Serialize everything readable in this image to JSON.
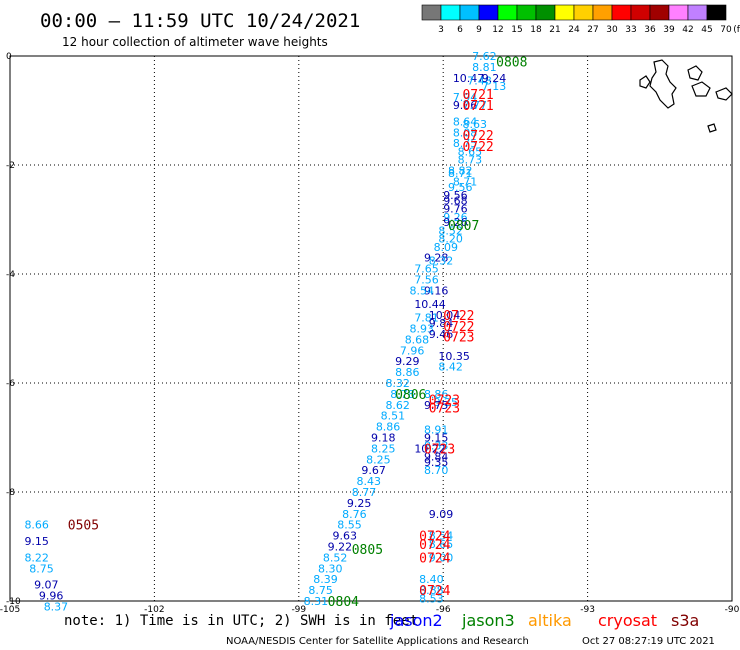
{
  "header": {
    "title": "00:00 — 11:59 UTC 10/24/2021",
    "subtitle": "12 hour collection of altimeter wave heights"
  },
  "colorbar": {
    "labels": [
      "3",
      "6",
      "9",
      "12",
      "15",
      "18",
      "21",
      "24",
      "27",
      "30",
      "33",
      "36",
      "39",
      "42",
      "45",
      "70",
      "(ft)"
    ],
    "colors": [
      "#777777",
      "#00ffff",
      "#00c0ff",
      "#0000ff",
      "#00ff00",
      "#00c000",
      "#009000",
      "#ffff00",
      "#ffd000",
      "#ffa000",
      "#ff0000",
      "#d00000",
      "#a00000",
      "#ff80ff",
      "#c080ff",
      "#000000"
    ]
  },
  "footer": {
    "note": "note: 1) Time is in UTC; 2) SWH is in feet",
    "credit": "NOAA/NESDIS Center for Satellite Applications and Research",
    "timestamp": "Oct 27 08:27:19 UTC 2021"
  },
  "legend": [
    {
      "name": "jason2",
      "color": "#0000ff"
    },
    {
      "name": "jason3",
      "color": "#008000"
    },
    {
      "name": "altika",
      "color": "#ff9900"
    },
    {
      "name": "cryosat",
      "color": "#ff0000"
    },
    {
      "name": "s3a",
      "color": "#800000"
    }
  ],
  "chart_data": {
    "type": "scatter",
    "title": "00:00 — 11:59 UTC 10/24/2021",
    "xlim": [
      -105,
      -90
    ],
    "ylim": [
      -10,
      0
    ],
    "x_ticks": [
      "-105",
      "-102",
      "-99",
      "-96",
      "-93",
      "-90"
    ],
    "y_ticks": [
      "0",
      "-2",
      "-4",
      "-6",
      "-8",
      "-10"
    ],
    "grid": true,
    "colors": {
      "light": "#00aaff",
      "dark": "#0000aa",
      "green": "#008000",
      "red": "#ff0000",
      "maroon": "#800000"
    },
    "points": [
      {
        "x": -95.4,
        "y": 0.0,
        "label": "7.62",
        "color": "light"
      },
      {
        "x": -95.4,
        "y": -0.2,
        "label": "8.81",
        "color": "light"
      },
      {
        "x": -95.8,
        "y": -0.4,
        "label": "10.47",
        "color": "dark"
      },
      {
        "x": -95.5,
        "y": -0.45,
        "label": "7.48",
        "color": "light"
      },
      {
        "x": -95.2,
        "y": -0.4,
        "label": "9.24",
        "color": "dark"
      },
      {
        "x": -95.2,
        "y": -0.55,
        "label": "7.13",
        "color": "light"
      },
      {
        "x": -95.8,
        "y": -0.75,
        "label": "7.94",
        "color": "light"
      },
      {
        "x": -95.8,
        "y": -0.9,
        "label": "9.06",
        "color": "dark"
      },
      {
        "x": -95.6,
        "y": -0.9,
        "label": "7.77",
        "color": "light"
      },
      {
        "x": -95.8,
        "y": -1.2,
        "label": "8.64",
        "color": "light"
      },
      {
        "x": -95.6,
        "y": -1.25,
        "label": "8.63",
        "color": "light"
      },
      {
        "x": -95.8,
        "y": -1.4,
        "label": "8.08",
        "color": "light"
      },
      {
        "x": -95.8,
        "y": -1.6,
        "label": "8.75",
        "color": "light"
      },
      {
        "x": -95.7,
        "y": -1.75,
        "label": "8.65",
        "color": "light"
      },
      {
        "x": -95.7,
        "y": -1.9,
        "label": "8.73",
        "color": "light"
      },
      {
        "x": -95.9,
        "y": -2.1,
        "label": "8.82",
        "color": "light"
      },
      {
        "x": -95.9,
        "y": -2.15,
        "label": "8.71",
        "color": "light"
      },
      {
        "x": -95.8,
        "y": -2.3,
        "label": "8.71",
        "color": "light"
      },
      {
        "x": -95.9,
        "y": -2.4,
        "label": "9.56",
        "color": "light"
      },
      {
        "x": -96.0,
        "y": -2.55,
        "label": "9.56",
        "color": "dark"
      },
      {
        "x": -96.0,
        "y": -2.65,
        "label": "9.68",
        "color": "dark"
      },
      {
        "x": -96.0,
        "y": -2.8,
        "label": "9.76",
        "color": "dark"
      },
      {
        "x": -96.0,
        "y": -2.95,
        "label": "9.26",
        "color": "light"
      },
      {
        "x": -96.0,
        "y": -3.05,
        "label": "9.26",
        "color": "dark"
      },
      {
        "x": -96.1,
        "y": -3.2,
        "label": "8.52",
        "color": "light"
      },
      {
        "x": -96.1,
        "y": -3.35,
        "label": "8.20",
        "color": "light"
      },
      {
        "x": -96.2,
        "y": -3.5,
        "label": "8.09",
        "color": "light"
      },
      {
        "x": -96.4,
        "y": -3.7,
        "label": "9.28",
        "color": "dark"
      },
      {
        "x": -96.3,
        "y": -3.75,
        "label": "8.32",
        "color": "light"
      },
      {
        "x": -96.6,
        "y": -3.9,
        "label": "7.65",
        "color": "light"
      },
      {
        "x": -96.6,
        "y": -4.1,
        "label": "7.56",
        "color": "light"
      },
      {
        "x": -96.4,
        "y": -4.3,
        "label": "9.16",
        "color": "dark"
      },
      {
        "x": -96.7,
        "y": -4.3,
        "label": "8.54",
        "color": "light"
      },
      {
        "x": -96.6,
        "y": -4.55,
        "label": "10.44",
        "color": "dark"
      },
      {
        "x": -96.3,
        "y": -4.75,
        "label": "10.04",
        "color": "dark"
      },
      {
        "x": -96.6,
        "y": -4.8,
        "label": "7.81",
        "color": "light"
      },
      {
        "x": -96.3,
        "y": -4.9,
        "label": "9.84",
        "color": "dark"
      },
      {
        "x": -96.7,
        "y": -5.0,
        "label": "8.93",
        "color": "light"
      },
      {
        "x": -96.3,
        "y": -5.1,
        "label": "9.46",
        "color": "dark"
      },
      {
        "x": -96.8,
        "y": -5.2,
        "label": "8.68",
        "color": "light"
      },
      {
        "x": -96.9,
        "y": -5.4,
        "label": "7.96",
        "color": "light"
      },
      {
        "x": -96.1,
        "y": -5.5,
        "label": "10.35",
        "color": "dark"
      },
      {
        "x": -97.0,
        "y": -5.6,
        "label": "9.29",
        "color": "dark"
      },
      {
        "x": -96.1,
        "y": -5.7,
        "label": "8.42",
        "color": "light"
      },
      {
        "x": -97.0,
        "y": -5.8,
        "label": "8.86",
        "color": "light"
      },
      {
        "x": -97.2,
        "y": -6.0,
        "label": "8.32",
        "color": "light"
      },
      {
        "x": -97.1,
        "y": -6.2,
        "label": "8.78",
        "color": "light"
      },
      {
        "x": -96.4,
        "y": -6.2,
        "label": "8.86",
        "color": "light"
      },
      {
        "x": -96.2,
        "y": -6.35,
        "label": "9.25",
        "color": "light"
      },
      {
        "x": -97.2,
        "y": -6.4,
        "label": "8.62",
        "color": "light"
      },
      {
        "x": -96.4,
        "y": -6.4,
        "label": "9.75",
        "color": "dark"
      },
      {
        "x": -97.3,
        "y": -6.6,
        "label": "8.51",
        "color": "light"
      },
      {
        "x": -97.4,
        "y": -6.8,
        "label": "8.86",
        "color": "light"
      },
      {
        "x": -96.4,
        "y": -6.85,
        "label": "8.91",
        "color": "light"
      },
      {
        "x": -96.4,
        "y": -7.0,
        "label": "9.15",
        "color": "dark"
      },
      {
        "x": -97.5,
        "y": -7.0,
        "label": "9.18",
        "color": "dark"
      },
      {
        "x": -96.4,
        "y": -7.15,
        "label": "8.33",
        "color": "light"
      },
      {
        "x": -97.5,
        "y": -7.2,
        "label": "8.25",
        "color": "light"
      },
      {
        "x": -96.6,
        "y": -7.2,
        "label": "10.22",
        "color": "dark"
      },
      {
        "x": -96.4,
        "y": -7.35,
        "label": "9.84",
        "color": "dark"
      },
      {
        "x": -97.6,
        "y": -7.4,
        "label": "8.25",
        "color": "light"
      },
      {
        "x": -96.4,
        "y": -7.45,
        "label": "9.35",
        "color": "dark"
      },
      {
        "x": -96.4,
        "y": -7.6,
        "label": "8.70",
        "color": "light"
      },
      {
        "x": -97.7,
        "y": -7.6,
        "label": "9.67",
        "color": "dark"
      },
      {
        "x": -97.8,
        "y": -7.8,
        "label": "8.43",
        "color": "light"
      },
      {
        "x": -97.9,
        "y": -8.0,
        "label": "8.77",
        "color": "light"
      },
      {
        "x": -98.0,
        "y": -8.2,
        "label": "9.25",
        "color": "dark"
      },
      {
        "x": -98.1,
        "y": -8.4,
        "label": "8.76",
        "color": "light"
      },
      {
        "x": -96.3,
        "y": -8.4,
        "label": "9.09",
        "color": "dark"
      },
      {
        "x": -98.2,
        "y": -8.6,
        "label": "8.55",
        "color": "light"
      },
      {
        "x": -98.3,
        "y": -8.8,
        "label": "9.63",
        "color": "dark"
      },
      {
        "x": -96.3,
        "y": -8.8,
        "label": "8.54",
        "color": "light"
      },
      {
        "x": -96.3,
        "y": -8.95,
        "label": "8.65",
        "color": "light"
      },
      {
        "x": -98.4,
        "y": -9.0,
        "label": "9.22",
        "color": "dark"
      },
      {
        "x": -98.5,
        "y": -9.2,
        "label": "8.52",
        "color": "light"
      },
      {
        "x": -96.3,
        "y": -9.2,
        "label": "9.00",
        "color": "light"
      },
      {
        "x": -98.6,
        "y": -9.4,
        "label": "8.30",
        "color": "light"
      },
      {
        "x": -98.7,
        "y": -9.6,
        "label": "8.39",
        "color": "light"
      },
      {
        "x": -96.5,
        "y": -9.6,
        "label": "8.40",
        "color": "light"
      },
      {
        "x": -98.8,
        "y": -9.8,
        "label": "8.75",
        "color": "light"
      },
      {
        "x": -96.5,
        "y": -9.8,
        "label": "8.88",
        "color": "light"
      },
      {
        "x": -98.9,
        "y": -10.0,
        "label": "8.31",
        "color": "light"
      },
      {
        "x": -96.5,
        "y": -9.95,
        "label": "8.53",
        "color": "light"
      },
      {
        "x": -104.7,
        "y": -8.6,
        "label": "8.66",
        "color": "light"
      },
      {
        "x": -104.7,
        "y": -8.9,
        "label": "9.15",
        "color": "dark"
      },
      {
        "x": -104.7,
        "y": -9.2,
        "label": "8.22",
        "color": "light"
      },
      {
        "x": -104.6,
        "y": -9.4,
        "label": "8.75",
        "color": "light"
      },
      {
        "x": -104.5,
        "y": -9.7,
        "label": "9.07",
        "color": "dark"
      },
      {
        "x": -104.4,
        "y": -9.9,
        "label": "9.96",
        "color": "dark"
      },
      {
        "x": -104.3,
        "y": -10.1,
        "label": "8.37",
        "color": "light"
      }
    ],
    "time_labels": [
      {
        "x": -94.9,
        "y": -0.1,
        "label": "0808",
        "color": "green"
      },
      {
        "x": -95.6,
        "y": -0.7,
        "label": "0721",
        "color": "red"
      },
      {
        "x": -95.6,
        "y": -0.9,
        "label": "0721",
        "color": "red"
      },
      {
        "x": -95.6,
        "y": -1.45,
        "label": "0722",
        "color": "red"
      },
      {
        "x": -95.6,
        "y": -1.65,
        "label": "0722",
        "color": "red"
      },
      {
        "x": -95.9,
        "y": -3.1,
        "label": "0807",
        "color": "green"
      },
      {
        "x": -96.0,
        "y": -4.75,
        "label": "0722",
        "color": "red"
      },
      {
        "x": -96.0,
        "y": -4.95,
        "label": "0722",
        "color": "red"
      },
      {
        "x": -96.0,
        "y": -5.15,
        "label": "0723",
        "color": "red"
      },
      {
        "x": -97.0,
        "y": -6.2,
        "label": "0806",
        "color": "green"
      },
      {
        "x": -96.3,
        "y": -6.3,
        "label": "0723",
        "color": "red"
      },
      {
        "x": -96.3,
        "y": -6.45,
        "label": "0723",
        "color": "red"
      },
      {
        "x": -96.4,
        "y": -7.2,
        "label": "0723",
        "color": "red"
      },
      {
        "x": -96.5,
        "y": -8.8,
        "label": "0724",
        "color": "red"
      },
      {
        "x": -96.5,
        "y": -8.95,
        "label": "0724",
        "color": "red"
      },
      {
        "x": -97.9,
        "y": -9.05,
        "label": "0805",
        "color": "green"
      },
      {
        "x": -96.5,
        "y": -9.2,
        "label": "0724",
        "color": "red"
      },
      {
        "x": -96.5,
        "y": -9.8,
        "label": "0724",
        "color": "red"
      },
      {
        "x": -98.4,
        "y": -10.0,
        "label": "0804",
        "color": "green"
      },
      {
        "x": -103.8,
        "y": -8.6,
        "label": "0505",
        "color": "maroon"
      }
    ]
  }
}
